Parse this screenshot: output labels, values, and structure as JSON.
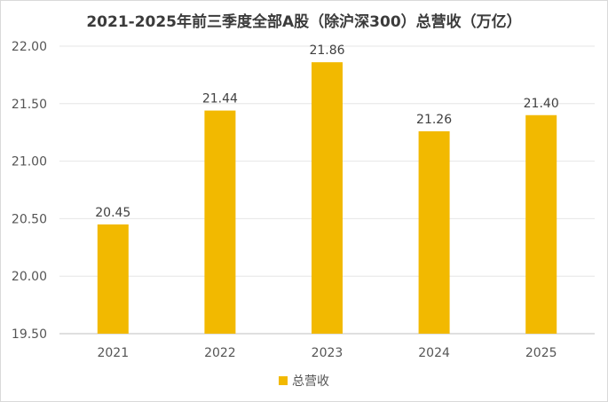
{
  "chart_data": {
    "type": "bar",
    "title": "2021-2025年前三季度全部A股（除沪深300）总营收（万亿）",
    "categories": [
      "2021",
      "2022",
      "2023",
      "2024",
      "2025"
    ],
    "series": [
      {
        "name": "总营收",
        "values": [
          20.45,
          21.44,
          21.86,
          21.26,
          21.4
        ]
      }
    ],
    "data_labels": [
      "20.45",
      "21.44",
      "21.86",
      "21.26",
      "21.40"
    ],
    "yticks": [
      "19.50",
      "20.00",
      "20.50",
      "21.00",
      "21.50",
      "22.00"
    ],
    "ylim": [
      19.5,
      22.0
    ],
    "xlabel": "",
    "ylabel": "",
    "grid": true,
    "legend_position": "bottom",
    "bar_color": "#f2b900"
  }
}
